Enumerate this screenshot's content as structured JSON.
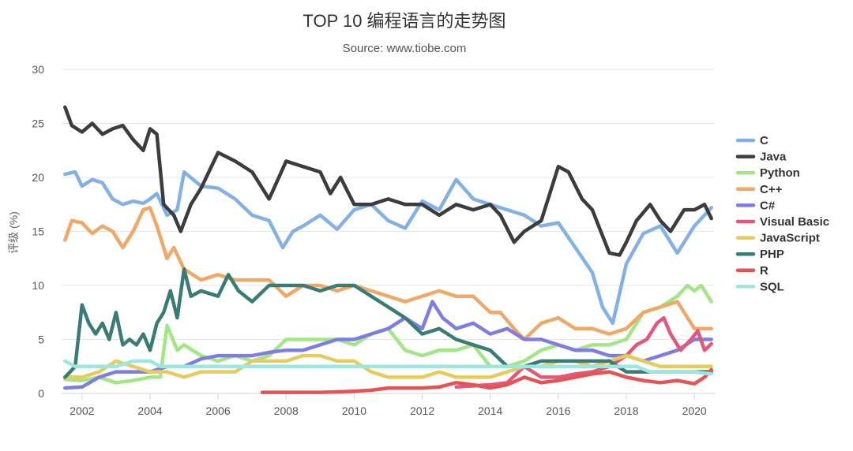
{
  "chart_data": {
    "type": "line",
    "title": "TOP 10 编程语言的走势图",
    "subtitle": "Source: www.tiobe.com",
    "ylabel": "评级 (%)",
    "xlabel": "",
    "xlim": [
      2001.4,
      2020.6
    ],
    "ylim": [
      0,
      30
    ],
    "xticks": [
      "2002",
      "2004",
      "2006",
      "2008",
      "2010",
      "2012",
      "2014",
      "2016",
      "2018",
      "2020"
    ],
    "yticks": [
      "0",
      "5",
      "10",
      "15",
      "20",
      "25",
      "30"
    ],
    "grid": true,
    "legend_position": "right",
    "series": [
      {
        "name": "C",
        "color": "#84b1e3",
        "x": [
          2001.5,
          2001.8,
          2002.0,
          2002.3,
          2002.6,
          2002.9,
          2003.2,
          2003.5,
          2003.8,
          2004.0,
          2004.2,
          2004.5,
          2004.8,
          2005.0,
          2005.5,
          2006.0,
          2006.5,
          2007.0,
          2007.5,
          2007.9,
          2008.2,
          2008.5,
          2009.0,
          2009.5,
          2010.0,
          2010.5,
          2011.0,
          2011.5,
          2012.0,
          2012.5,
          2013.0,
          2013.5,
          2014.0,
          2014.5,
          2015.0,
          2015.5,
          2016.0,
          2016.5,
          2017.0,
          2017.3,
          2017.6,
          2018.0,
          2018.5,
          2019.0,
          2019.5,
          2020.0,
          2020.5
        ],
        "y": [
          20.3,
          20.5,
          19.2,
          19.8,
          19.5,
          18.0,
          17.5,
          17.8,
          17.6,
          18.0,
          18.5,
          16.5,
          17.0,
          20.5,
          19.2,
          19.0,
          18.0,
          16.5,
          16.0,
          13.5,
          15.0,
          15.5,
          16.5,
          15.2,
          17.0,
          17.5,
          16.0,
          15.3,
          17.8,
          17.0,
          19.8,
          18.0,
          17.5,
          17.0,
          16.5,
          15.5,
          15.8,
          13.5,
          11.2,
          8.0,
          6.5,
          12.0,
          14.8,
          15.5,
          13.0,
          15.5,
          17.2
        ]
      },
      {
        "name": "Java",
        "color": "#3c3c40",
        "x": [
          2001.5,
          2001.7,
          2002.0,
          2002.3,
          2002.6,
          2002.9,
          2003.2,
          2003.5,
          2003.8,
          2004.0,
          2004.2,
          2004.4,
          2004.7,
          2004.9,
          2005.2,
          2005.5,
          2006.0,
          2006.5,
          2007.0,
          2007.5,
          2008.0,
          2008.5,
          2009.0,
          2009.3,
          2009.6,
          2010.0,
          2010.5,
          2011.0,
          2011.5,
          2012.0,
          2012.5,
          2013.0,
          2013.5,
          2014.0,
          2014.3,
          2014.7,
          2015.0,
          2015.5,
          2016.0,
          2016.3,
          2016.7,
          2017.0,
          2017.5,
          2017.8,
          2018.0,
          2018.3,
          2018.7,
          2019.0,
          2019.3,
          2019.7,
          2020.0,
          2020.3,
          2020.5
        ],
        "y": [
          26.5,
          24.8,
          24.2,
          25.0,
          24.0,
          24.5,
          24.8,
          23.5,
          22.5,
          24.5,
          24.0,
          17.5,
          16.5,
          15.0,
          17.5,
          19.0,
          22.3,
          21.5,
          20.5,
          18.0,
          21.5,
          21.0,
          20.5,
          18.5,
          20.0,
          17.5,
          17.5,
          18.0,
          17.5,
          17.5,
          16.5,
          17.5,
          17.0,
          17.5,
          16.5,
          14.0,
          15.0,
          16.0,
          21.0,
          20.5,
          18.0,
          17.0,
          13.0,
          12.8,
          14.0,
          16.0,
          17.5,
          16.0,
          15.0,
          17.0,
          17.0,
          17.5,
          16.2
        ]
      },
      {
        "name": "Python",
        "color": "#a3e686",
        "x": [
          2001.5,
          2002.0,
          2002.5,
          2003.0,
          2003.5,
          2004.0,
          2004.3,
          2004.5,
          2004.8,
          2005.0,
          2005.5,
          2006.0,
          2006.5,
          2007.0,
          2007.5,
          2008.0,
          2008.5,
          2009.0,
          2009.5,
          2010.0,
          2010.5,
          2011.0,
          2011.5,
          2012.0,
          2012.5,
          2013.0,
          2013.5,
          2014.0,
          2014.5,
          2015.0,
          2015.5,
          2016.0,
          2016.5,
          2017.0,
          2017.5,
          2018.0,
          2018.5,
          2019.0,
          2019.5,
          2019.8,
          2020.0,
          2020.2,
          2020.5
        ],
        "y": [
          1.3,
          1.2,
          1.5,
          1.0,
          1.2,
          1.5,
          1.5,
          6.3,
          4.0,
          4.5,
          3.5,
          3.0,
          3.5,
          3.0,
          3.5,
          5.0,
          5.0,
          5.0,
          5.0,
          4.5,
          5.5,
          6.0,
          4.0,
          3.5,
          4.0,
          4.0,
          4.5,
          2.5,
          2.5,
          3.0,
          4.0,
          4.5,
          4.0,
          4.5,
          4.5,
          5.0,
          7.5,
          8.0,
          9.0,
          10.0,
          9.5,
          10.0,
          8.5
        ]
      },
      {
        "name": "C++",
        "color": "#f0a868",
        "x": [
          2001.5,
          2001.7,
          2002.0,
          2002.3,
          2002.6,
          2002.9,
          2003.2,
          2003.5,
          2003.8,
          2004.0,
          2004.2,
          2004.5,
          2004.7,
          2005.0,
          2005.5,
          2006.0,
          2006.5,
          2007.0,
          2007.5,
          2008.0,
          2008.5,
          2009.0,
          2009.5,
          2010.0,
          2010.5,
          2011.0,
          2011.5,
          2012.0,
          2012.5,
          2013.0,
          2013.5,
          2014.0,
          2014.3,
          2014.7,
          2015.0,
          2015.5,
          2016.0,
          2016.5,
          2017.0,
          2017.5,
          2018.0,
          2018.5,
          2019.0,
          2019.5,
          2020.0,
          2020.5
        ],
        "y": [
          14.2,
          16.0,
          15.8,
          14.8,
          15.5,
          15.0,
          13.5,
          15.0,
          17.0,
          17.2,
          15.5,
          12.5,
          13.5,
          11.5,
          10.5,
          11.0,
          10.5,
          10.5,
          10.5,
          9.0,
          10.0,
          10.0,
          9.5,
          10.0,
          9.5,
          9.0,
          8.5,
          9.0,
          9.5,
          9.0,
          9.0,
          7.5,
          7.5,
          6.0,
          5.0,
          6.5,
          7.0,
          6.0,
          6.0,
          5.5,
          6.0,
          7.5,
          8.0,
          8.5,
          6.0,
          6.0
        ]
      },
      {
        "name": "C#",
        "color": "#7e7ee0",
        "x": [
          2001.5,
          2002.0,
          2002.5,
          2003.0,
          2003.5,
          2004.0,
          2004.5,
          2005.0,
          2005.5,
          2006.0,
          2006.5,
          2007.0,
          2007.5,
          2008.0,
          2008.5,
          2009.0,
          2009.5,
          2010.0,
          2010.5,
          2011.0,
          2011.5,
          2012.0,
          2012.3,
          2012.6,
          2013.0,
          2013.5,
          2014.0,
          2014.5,
          2015.0,
          2015.5,
          2016.0,
          2016.5,
          2017.0,
          2017.5,
          2018.0,
          2018.5,
          2019.0,
          2019.5,
          2020.0,
          2020.5
        ],
        "y": [
          0.5,
          0.6,
          1.5,
          2.0,
          2.0,
          2.0,
          2.5,
          2.5,
          3.2,
          3.5,
          3.5,
          3.5,
          3.8,
          4.0,
          4.0,
          4.5,
          5.0,
          5.0,
          5.5,
          6.0,
          7.0,
          6.0,
          8.5,
          7.0,
          6.0,
          6.5,
          5.5,
          6.0,
          5.0,
          5.0,
          4.5,
          4.0,
          4.0,
          3.5,
          3.5,
          3.0,
          3.5,
          4.0,
          5.0,
          5.0
        ]
      },
      {
        "name": "Visual Basic",
        "color": "#e0587a",
        "x": [
          2013.0,
          2014.0,
          2014.5,
          2015.0,
          2015.5,
          2016.0,
          2016.5,
          2017.0,
          2017.5,
          2018.0,
          2018.3,
          2018.6,
          2018.9,
          2019.1,
          2019.3,
          2019.6,
          2019.9,
          2020.1,
          2020.3,
          2020.5
        ],
        "y": [
          0.6,
          0.8,
          1.0,
          2.5,
          1.5,
          1.5,
          1.8,
          2.0,
          2.5,
          3.5,
          4.5,
          5.0,
          6.5,
          7.0,
          5.5,
          4.0,
          5.0,
          5.8,
          4.0,
          4.6
        ]
      },
      {
        "name": "JavaScript",
        "color": "#e6cc5c",
        "x": [
          2001.5,
          2002.0,
          2002.5,
          2003.0,
          2003.5,
          2004.0,
          2004.5,
          2005.0,
          2005.5,
          2006.0,
          2006.5,
          2007.0,
          2007.5,
          2008.0,
          2008.5,
          2009.0,
          2009.5,
          2010.0,
          2010.5,
          2011.0,
          2011.5,
          2012.0,
          2012.5,
          2013.0,
          2013.5,
          2014.0,
          2014.5,
          2015.0,
          2015.5,
          2016.0,
          2016.5,
          2017.0,
          2017.5,
          2018.0,
          2018.5,
          2019.0,
          2019.5,
          2020.0,
          2020.5
        ],
        "y": [
          1.5,
          1.5,
          2.0,
          3.0,
          2.5,
          2.0,
          2.0,
          1.5,
          2.0,
          2.0,
          2.0,
          3.0,
          3.0,
          3.0,
          3.5,
          3.5,
          3.0,
          3.0,
          2.0,
          1.5,
          1.5,
          1.5,
          2.0,
          1.5,
          1.5,
          1.5,
          2.0,
          2.5,
          2.5,
          3.0,
          3.0,
          2.5,
          3.0,
          3.5,
          3.0,
          2.5,
          2.5,
          2.5,
          2.5
        ]
      },
      {
        "name": "PHP",
        "color": "#3a7c75",
        "x": [
          2001.5,
          2001.8,
          2002.0,
          2002.2,
          2002.4,
          2002.6,
          2002.8,
          2003.0,
          2003.2,
          2003.4,
          2003.6,
          2003.8,
          2004.0,
          2004.2,
          2004.4,
          2004.6,
          2004.8,
          2005.0,
          2005.2,
          2005.5,
          2006.0,
          2006.3,
          2006.6,
          2007.0,
          2007.5,
          2008.0,
          2008.5,
          2009.0,
          2009.5,
          2010.0,
          2010.5,
          2011.0,
          2011.5,
          2012.0,
          2012.5,
          2013.0,
          2013.5,
          2014.0,
          2014.5,
          2015.0,
          2015.5,
          2016.0,
          2016.5,
          2017.0,
          2017.5,
          2018.0,
          2018.5,
          2019.0,
          2019.5,
          2020.0,
          2020.5
        ],
        "y": [
          1.5,
          2.5,
          8.2,
          6.5,
          5.5,
          6.5,
          5.0,
          7.5,
          4.5,
          5.0,
          4.5,
          5.5,
          4.0,
          6.5,
          7.5,
          9.5,
          7.0,
          11.5,
          9.0,
          9.5,
          9.0,
          11.0,
          9.5,
          8.5,
          10.0,
          10.0,
          10.0,
          9.5,
          10.0,
          10.0,
          9.0,
          8.0,
          7.0,
          5.5,
          6.0,
          5.0,
          4.5,
          4.0,
          2.5,
          2.5,
          3.0,
          3.0,
          3.0,
          3.0,
          3.0,
          2.0,
          2.0,
          2.0,
          2.0,
          2.0,
          2.0
        ]
      },
      {
        "name": "R",
        "color": "#e35454",
        "x": [
          2007.3,
          2008.0,
          2009.0,
          2010.0,
          2010.5,
          2011.0,
          2011.5,
          2012.0,
          2012.5,
          2013.0,
          2013.5,
          2014.0,
          2014.5,
          2015.0,
          2015.5,
          2016.0,
          2016.5,
          2017.0,
          2017.5,
          2018.0,
          2018.5,
          2019.0,
          2019.5,
          2020.0,
          2020.3,
          2020.5
        ],
        "y": [
          0.1,
          0.1,
          0.1,
          0.2,
          0.3,
          0.5,
          0.5,
          0.5,
          0.6,
          1.0,
          0.8,
          0.5,
          0.8,
          1.5,
          1.0,
          1.2,
          1.5,
          1.8,
          2.0,
          1.5,
          1.2,
          1.0,
          1.2,
          0.9,
          1.5,
          2.2
        ]
      },
      {
        "name": "SQL",
        "color": "#9ee6e0",
        "x": [
          2001.5,
          2001.8,
          2002.0,
          2002.5,
          2003.0,
          2003.5,
          2004.0,
          2004.3,
          2004.5,
          2005.0,
          2005.5,
          2006.0,
          2007.0,
          2008.0,
          2009.0,
          2010.0,
          2011.0,
          2012.0,
          2013.0,
          2014.0,
          2015.0,
          2016.0,
          2017.0,
          2017.8,
          2018.0,
          2018.3,
          2018.7,
          2019.0,
          2019.5,
          2020.0,
          2020.5
        ],
        "y": [
          3.0,
          2.5,
          2.5,
          2.5,
          2.5,
          3.0,
          3.0,
          2.5,
          2.5,
          2.5,
          2.5,
          2.5,
          2.5,
          2.5,
          2.5,
          2.5,
          2.5,
          2.5,
          2.5,
          2.5,
          2.5,
          2.5,
          2.5,
          2.5,
          2.5,
          2.5,
          2.0,
          2.0,
          2.0,
          2.0,
          1.8
        ]
      }
    ]
  }
}
